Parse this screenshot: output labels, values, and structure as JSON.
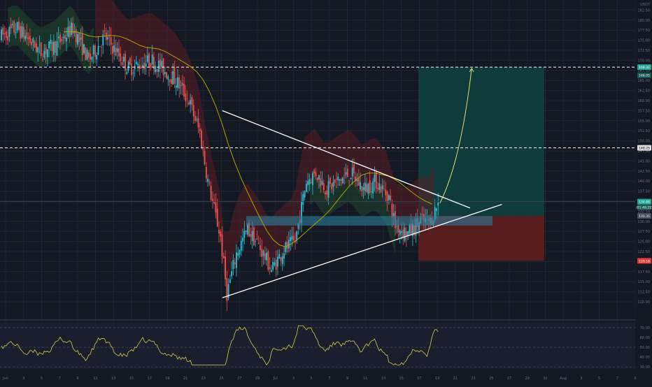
{
  "app": {
    "currency_label": "USDT"
  },
  "colors": {
    "background": "#141823",
    "grid": "#1f2533",
    "candle_up": "#26c6da",
    "candle_down": "#ef5350",
    "cloud_up": "#1f4a30",
    "cloud_down": "#5a1f24",
    "ma_line": "#b5a000",
    "target_zone": "#0f3d3d",
    "stop_zone": "#5a1c1f",
    "rsi_line": "#d8cf4c",
    "axis_text": "#b2b5be",
    "white_line": "#ffffff",
    "blue_zone": "#2e7d99",
    "red_badge": "#e53935",
    "teal_badge": "#26a69a"
  },
  "chart_data": {
    "type": "candlestick",
    "symbol": "price",
    "price_axis_ticks": [
      "182.50",
      "180.00",
      "177.50",
      "175.00",
      "172.50",
      "170.00",
      "167.50",
      "165.00",
      "162.50",
      "160.00",
      "157.50",
      "155.00",
      "152.50",
      "150.00",
      "147.50",
      "145.00",
      "142.50",
      "140.00",
      "137.50",
      "135.00",
      "132.50",
      "130.00",
      "127.50",
      "125.00",
      "122.50",
      "120.00",
      "117.50",
      "115.00",
      "112.50",
      "110.00"
    ],
    "rsi_axis_ticks": [
      "70.00",
      "60.00",
      "50.00",
      "40.00",
      "30.00"
    ],
    "time_axis_ticks": [
      "Jun",
      "3",
      "5",
      "7",
      "9",
      "11",
      "13",
      "15",
      "17",
      "19",
      "21",
      "23",
      "25",
      "27",
      "29",
      "Jul",
      "3",
      "5",
      "7",
      "9",
      "11",
      "13",
      "15",
      "17",
      "19",
      "21",
      "23",
      "25",
      "27",
      "29",
      "31",
      "Aug",
      "3",
      "5",
      "7",
      "9"
    ],
    "price_badges": {
      "target": "168.32",
      "target_sub": "166.05",
      "mid_level": "148.25",
      "current": "134.88",
      "current_sub": "(01:48:25)",
      "entry": "131.35",
      "stop": "120.18"
    },
    "levels": {
      "resistance_high": 168.32,
      "resistance_mid": 148.25
    },
    "trade_setup": {
      "entry": 131.35,
      "target": 168.32,
      "stop": 120.18
    },
    "triangle": {
      "upper": [
        [
          140,
          157.5
        ],
        [
          296,
          133.3
        ]
      ],
      "lower": [
        [
          140,
          111.0
        ],
        [
          316,
          134.2
        ]
      ]
    },
    "support_zone": {
      "top": 131.3,
      "bottom": 129.8
    },
    "forecast_arrow": [
      [
        277,
        134.5
      ],
      [
        297,
        168.0
      ]
    ],
    "rsi_range": [
      30,
      75
    ]
  }
}
